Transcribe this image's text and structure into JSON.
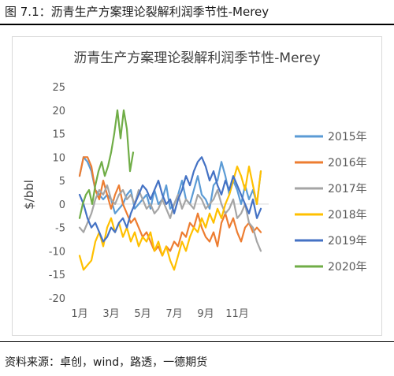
{
  "figure": {
    "title": "图 7.1：沥青生产方案理论裂解利润季节性-Merey",
    "source": "资料来源：卓创，wind，路透，一德期货"
  },
  "chart_data": {
    "type": "line",
    "title": "沥青生产方案理论裂解利润季节性-Merey",
    "xlabel": "",
    "ylabel": "$/bbl",
    "ylim": [
      -20,
      25
    ],
    "yticks": [
      -20,
      -15,
      -10,
      -5,
      0,
      5,
      10,
      15,
      20,
      25
    ],
    "xlim": [
      1,
      13
    ],
    "xticks": [
      1,
      3,
      5,
      7,
      9,
      11
    ],
    "xtick_labels": [
      "1月",
      "3月",
      "5月",
      "7月",
      "9月",
      "11月"
    ],
    "grid": false,
    "legend": "right",
    "series": [
      {
        "name": "2015年",
        "color": "#5b9bd5",
        "x": [
          1.0,
          1.25,
          1.5,
          1.75,
          2.0,
          2.25,
          2.5,
          2.75,
          3.0,
          3.25,
          3.5,
          3.75,
          4.0,
          4.25,
          4.5,
          4.75,
          5.0,
          5.25,
          5.5,
          5.75,
          6.0,
          6.25,
          6.5,
          6.75,
          7.0,
          7.25,
          7.5,
          7.75,
          8.0,
          8.25,
          8.5,
          8.75,
          9.0,
          9.25,
          9.5,
          9.75,
          10.0,
          10.25,
          10.5,
          10.75,
          11.0,
          11.25,
          11.5,
          11.75,
          12.0,
          12.25,
          12.5
        ],
        "y": [
          6,
          10,
          9,
          7,
          3,
          2,
          1,
          2,
          1,
          -2,
          -1,
          0,
          2,
          3,
          -1,
          0,
          1,
          2,
          -1,
          3,
          0,
          1,
          4,
          -1,
          0,
          2,
          5,
          1,
          0,
          3,
          6,
          2,
          1,
          -1,
          4,
          5,
          9,
          6,
          2,
          5,
          3,
          0,
          4,
          1,
          3,
          0,
          7
        ]
      },
      {
        "name": "2016年",
        "color": "#ed7d31",
        "x": [
          1.0,
          1.25,
          1.5,
          1.75,
          2.0,
          2.25,
          2.5,
          2.75,
          3.0,
          3.25,
          3.5,
          3.75,
          4.0,
          4.25,
          4.5,
          4.75,
          5.0,
          5.25,
          5.5,
          5.75,
          6.0,
          6.25,
          6.5,
          6.75,
          7.0,
          7.25,
          7.5,
          7.75,
          8.0,
          8.25,
          8.5,
          8.75,
          9.0,
          9.25,
          9.5,
          9.75,
          10.0,
          10.25,
          10.5,
          10.75,
          11.0,
          11.25,
          11.5,
          11.75,
          12.0,
          12.25,
          12.5
        ],
        "y": [
          6,
          10,
          10,
          8,
          3,
          1,
          5,
          2,
          -1,
          2,
          4,
          0,
          -2,
          -4,
          -3,
          -5,
          -7,
          -6,
          -8,
          -10,
          -9,
          -11,
          -9,
          -10,
          -8,
          -9,
          -6,
          -7,
          -4,
          -5,
          -2,
          -5,
          -7,
          -8,
          -6,
          -9,
          -4,
          -2,
          -5,
          -3,
          -6,
          -8,
          -5,
          -4,
          -6,
          -5,
          -6
        ]
      },
      {
        "name": "2017年",
        "color": "#a5a5a5",
        "x": [
          1.0,
          1.25,
          1.5,
          1.75,
          2.0,
          2.25,
          2.5,
          2.75,
          3.0,
          3.25,
          3.5,
          3.75,
          4.0,
          4.25,
          4.5,
          4.75,
          5.0,
          5.25,
          5.5,
          5.75,
          6.0,
          6.25,
          6.5,
          6.75,
          7.0,
          7.25,
          7.5,
          7.75,
          8.0,
          8.25,
          8.5,
          8.75,
          9.0,
          9.25,
          9.5,
          9.75,
          10.0,
          10.25,
          10.5,
          10.75,
          11.0,
          11.25,
          11.5,
          11.75,
          12.0,
          12.25,
          12.5
        ],
        "y": [
          -5,
          -6,
          -4,
          -2,
          1,
          3,
          2,
          4,
          1,
          0,
          2,
          3,
          1,
          2,
          0,
          3,
          1,
          -1,
          0,
          -2,
          -1,
          1,
          -1,
          -3,
          0,
          2,
          -1,
          1,
          0,
          -1,
          2,
          1,
          -1,
          0,
          1,
          3,
          0,
          -2,
          -1,
          1,
          -3,
          -2,
          0,
          -4,
          -5,
          -8,
          -10
        ]
      },
      {
        "name": "2018年",
        "color": "#ffc000",
        "x": [
          1.0,
          1.25,
          1.5,
          1.75,
          2.0,
          2.25,
          2.5,
          2.75,
          3.0,
          3.25,
          3.5,
          3.75,
          4.0,
          4.25,
          4.5,
          4.75,
          5.0,
          5.25,
          5.5,
          5.75,
          6.0,
          6.25,
          6.5,
          6.75,
          7.0,
          7.25,
          7.5,
          7.75,
          8.0,
          8.25,
          8.5,
          8.75,
          9.0,
          9.25,
          9.5,
          9.75,
          10.0,
          10.25,
          10.5,
          10.75,
          11.0,
          11.25,
          11.5,
          11.75,
          12.0,
          12.25,
          12.5
        ],
        "y": [
          -11,
          -14,
          -13,
          -12,
          -8,
          -6,
          -9,
          -5,
          -3,
          -6,
          -4,
          -7,
          -5,
          -8,
          -6,
          -9,
          -7,
          -8,
          -6,
          -10,
          -8,
          -11,
          -9,
          -12,
          -14,
          -11,
          -8,
          -10,
          -7,
          -5,
          -6,
          -3,
          -5,
          -2,
          -4,
          -1,
          -3,
          0,
          2,
          5,
          8,
          6,
          3,
          8,
          4,
          0,
          7
        ]
      },
      {
        "name": "2019年",
        "color": "#4472c4",
        "x": [
          1.0,
          1.25,
          1.5,
          1.75,
          2.0,
          2.25,
          2.5,
          2.75,
          3.0,
          3.25,
          3.5,
          3.75,
          4.0,
          4.25,
          4.5,
          4.75,
          5.0,
          5.25,
          5.5,
          5.75,
          6.0,
          6.25,
          6.5,
          6.75,
          7.0,
          7.25,
          7.5,
          7.75,
          8.0,
          8.25,
          8.5,
          8.75,
          9.0,
          9.25,
          9.5,
          9.75,
          10.0,
          10.25,
          10.5,
          10.75,
          11.0,
          11.25,
          11.5,
          11.75,
          12.0,
          12.25,
          12.5
        ],
        "y": [
          2,
          0,
          -3,
          -5,
          -4,
          -6,
          -8,
          -7,
          -5,
          -6,
          -4,
          -3,
          -5,
          -2,
          0,
          2,
          4,
          3,
          1,
          3,
          5,
          2,
          0,
          1,
          -2,
          1,
          3,
          6,
          4,
          7,
          9,
          10,
          8,
          5,
          7,
          4,
          2,
          5,
          3,
          6,
          4,
          2,
          0,
          -2,
          1,
          -3,
          -1
        ]
      },
      {
        "name": "2020年",
        "color": "#70ad47",
        "x": [
          1.0,
          1.2,
          1.4,
          1.6,
          1.8,
          2.0,
          2.2,
          2.4,
          2.6,
          2.8,
          3.0,
          3.2,
          3.4,
          3.6,
          3.8,
          4.0,
          4.2,
          4.4
        ],
        "y": [
          -3,
          0,
          2,
          3,
          0,
          4,
          7,
          9,
          6,
          8,
          11,
          15,
          20,
          14,
          20,
          16,
          7,
          11
        ]
      }
    ]
  }
}
